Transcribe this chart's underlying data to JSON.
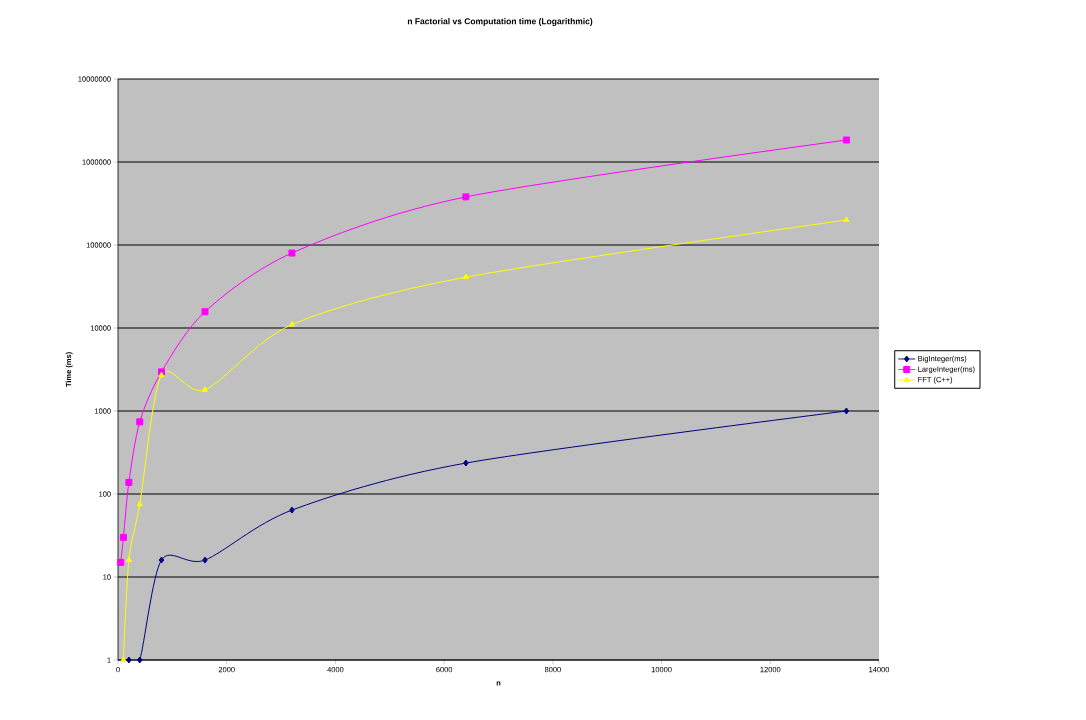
{
  "chart_data": {
    "type": "line",
    "title": "n Factorial vs Computation time (Logarithmic)",
    "xlabel": "n",
    "ylabel": "Time (ms)",
    "xlim": [
      0,
      14000
    ],
    "xticks": [
      0,
      2000,
      4000,
      6000,
      8000,
      10000,
      12000,
      14000
    ],
    "ylim": [
      1,
      10000000
    ],
    "yticks": [
      1,
      10,
      100,
      1000,
      10000,
      100000,
      1000000,
      10000000
    ],
    "log": "y",
    "grid": "y",
    "legend": "right",
    "series": [
      {
        "name": "BigInteger(ms)",
        "color": "#000080",
        "marker": "diamond",
        "x": [
          200,
          400,
          800,
          1600,
          3200,
          6400,
          13400
        ],
        "values": [
          1,
          1,
          16,
          16,
          64,
          236,
          1000
        ]
      },
      {
        "name": "LargeInteger(ms)",
        "color": "#ff00ff",
        "marker": "square",
        "x": [
          50,
          100,
          200,
          400,
          800,
          1600,
          3200,
          6400,
          13400
        ],
        "values": [
          15,
          30,
          138,
          740,
          2960,
          15700,
          80000,
          380000,
          1840000
        ]
      },
      {
        "name": "FFT (C++)",
        "color": "#ffff00",
        "marker": "triangle",
        "x": [
          100,
          200,
          400,
          800,
          1600,
          3200,
          6400,
          13400
        ],
        "values": [
          1,
          16,
          75,
          2700,
          1800,
          11000,
          41000,
          200000
        ]
      }
    ]
  }
}
